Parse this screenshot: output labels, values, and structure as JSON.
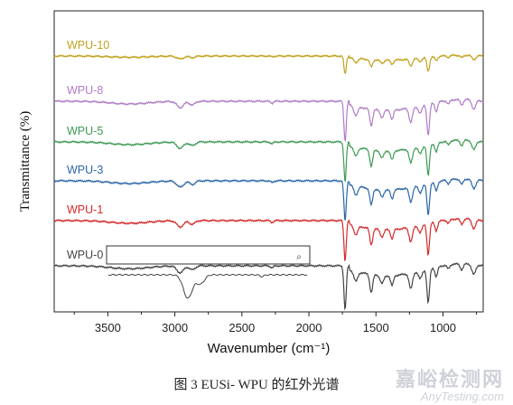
{
  "chart_data": {
    "type": "line",
    "xlabel": "Wavenumber (cm⁻¹)",
    "ylabel": "Transmittance (%)",
    "xlim": [
      3900,
      700
    ],
    "x_ticks": [
      "3500",
      "3000",
      "2500",
      "2000",
      "1500",
      "1000"
    ],
    "tick_values": [
      3500,
      3000,
      2500,
      2000,
      1500,
      1000
    ],
    "series": [
      {
        "name": "WPU-10",
        "color": "#c2a21e",
        "baseline": 50,
        "scale": 0.45
      },
      {
        "name": "WPU-8",
        "color": "#b07cc6",
        "baseline": 100,
        "scale": 1.0
      },
      {
        "name": "WPU-5",
        "color": "#3e9a55",
        "baseline": 145,
        "scale": 1.0
      },
      {
        "name": "WPU-3",
        "color": "#2c66a8",
        "baseline": 188,
        "scale": 1.0
      },
      {
        "name": "WPU-1",
        "color": "#d42a2a",
        "baseline": 232,
        "scale": 1.0
      },
      {
        "name": "WPU-0",
        "color": "#444444",
        "baseline": 282,
        "scale": 1.1
      }
    ]
  },
  "caption": "图 3    EUSi- WPU 的红外光谱",
  "watermark": {
    "cn": "嘉峪检测网",
    "en": "AnyTesting.com"
  }
}
